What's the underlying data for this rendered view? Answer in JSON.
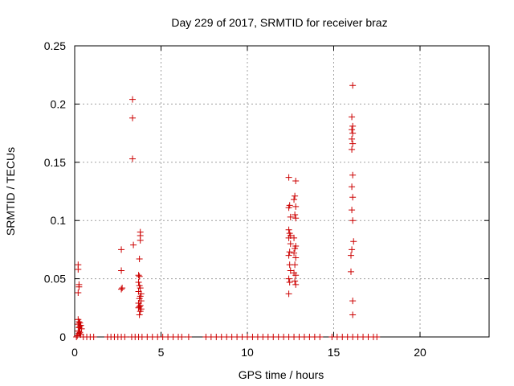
{
  "chart_data": {
    "type": "scatter",
    "title": "Day 229 of 2017, SRMTID for receiver braz",
    "xlabel": "GPS time / hours",
    "ylabel": "SRMTID / TECUs",
    "xlim": [
      0,
      24
    ],
    "ylim": [
      0,
      0.25
    ],
    "xticks": [
      0,
      5,
      10,
      15,
      20
    ],
    "xtick_labels": [
      "0",
      "5",
      "10",
      "15",
      "20"
    ],
    "yticks": [
      0,
      0.05,
      0.1,
      0.15,
      0.2,
      0.25
    ],
    "ytick_labels": [
      "0",
      "0.05",
      "0.1",
      "0.15",
      "0.2",
      "0.25"
    ],
    "grid": true,
    "marker": "+",
    "color": "#cc0000",
    "series": [
      {
        "name": "SRMTID",
        "points": [
          [
            0.2,
            0.062
          ],
          [
            0.2,
            0.058
          ],
          [
            0.25,
            0.045
          ],
          [
            0.25,
            0.043
          ],
          [
            0.2,
            0.038
          ],
          [
            0.2,
            0.015
          ],
          [
            0.25,
            0.013
          ],
          [
            0.3,
            0.012
          ],
          [
            0.2,
            0.011
          ],
          [
            0.35,
            0.01
          ],
          [
            0.3,
            0.009
          ],
          [
            0.25,
            0.008
          ],
          [
            0.4,
            0.007
          ],
          [
            0.2,
            0.005
          ],
          [
            0.3,
            0.004
          ],
          [
            0.25,
            0.003
          ],
          [
            0.35,
            0.002
          ],
          [
            0.15,
            0.001
          ],
          [
            0.1,
            0.0
          ],
          [
            0.5,
            0.0
          ],
          [
            0.7,
            0.0
          ],
          [
            0.9,
            0.0
          ],
          [
            1.1,
            0.0
          ],
          [
            1.9,
            0.0
          ],
          [
            2.1,
            0.0
          ],
          [
            2.3,
            0.0
          ],
          [
            2.5,
            0.0
          ],
          [
            2.7,
            0.0
          ],
          [
            2.9,
            0.0
          ],
          [
            2.7,
            0.075
          ],
          [
            2.7,
            0.057
          ],
          [
            2.75,
            0.042
          ],
          [
            2.7,
            0.041
          ],
          [
            3.3,
            0.0
          ],
          [
            3.5,
            0.0
          ],
          [
            3.7,
            0.0
          ],
          [
            3.9,
            0.0
          ],
          [
            3.35,
            0.204
          ],
          [
            3.35,
            0.188
          ],
          [
            3.35,
            0.153
          ],
          [
            3.4,
            0.079
          ],
          [
            3.8,
            0.09
          ],
          [
            3.8,
            0.087
          ],
          [
            3.8,
            0.083
          ],
          [
            3.75,
            0.067
          ],
          [
            3.7,
            0.053
          ],
          [
            3.75,
            0.052
          ],
          [
            3.7,
            0.047
          ],
          [
            3.75,
            0.044
          ],
          [
            3.8,
            0.042
          ],
          [
            3.7,
            0.039
          ],
          [
            3.85,
            0.037
          ],
          [
            3.8,
            0.035
          ],
          [
            3.75,
            0.033
          ],
          [
            3.85,
            0.031
          ],
          [
            3.7,
            0.029
          ],
          [
            3.8,
            0.027
          ],
          [
            3.75,
            0.026
          ],
          [
            3.7,
            0.025
          ],
          [
            3.85,
            0.024
          ],
          [
            3.8,
            0.022
          ],
          [
            3.75,
            0.019
          ],
          [
            4.2,
            0.0
          ],
          [
            4.5,
            0.0
          ],
          [
            4.8,
            0.0
          ],
          [
            5.1,
            0.0
          ],
          [
            5.4,
            0.0
          ],
          [
            5.7,
            0.0
          ],
          [
            6.0,
            0.0
          ],
          [
            6.2,
            0.0
          ],
          [
            6.6,
            0.0
          ],
          [
            7.6,
            0.0
          ],
          [
            7.9,
            0.0
          ],
          [
            8.2,
            0.0
          ],
          [
            8.5,
            0.0
          ],
          [
            8.8,
            0.0
          ],
          [
            9.1,
            0.0
          ],
          [
            9.4,
            0.0
          ],
          [
            9.7,
            0.0
          ],
          [
            10.0,
            0.0
          ],
          [
            10.3,
            0.0
          ],
          [
            10.6,
            0.0
          ],
          [
            10.9,
            0.0
          ],
          [
            11.2,
            0.0
          ],
          [
            11.5,
            0.0
          ],
          [
            11.8,
            0.0
          ],
          [
            12.1,
            0.0
          ],
          [
            12.4,
            0.0
          ],
          [
            12.7,
            0.0
          ],
          [
            13.0,
            0.0
          ],
          [
            13.3,
            0.0
          ],
          [
            13.6,
            0.0
          ],
          [
            13.9,
            0.0
          ],
          [
            14.2,
            0.0
          ],
          [
            12.4,
            0.137
          ],
          [
            12.45,
            0.113
          ],
          [
            12.4,
            0.111
          ],
          [
            12.5,
            0.103
          ],
          [
            12.4,
            0.092
          ],
          [
            12.45,
            0.089
          ],
          [
            12.5,
            0.087
          ],
          [
            12.4,
            0.085
          ],
          [
            12.5,
            0.08
          ],
          [
            12.45,
            0.073
          ],
          [
            12.4,
            0.07
          ],
          [
            12.45,
            0.062
          ],
          [
            12.5,
            0.057
          ],
          [
            12.4,
            0.05
          ],
          [
            12.45,
            0.047
          ],
          [
            12.4,
            0.037
          ],
          [
            12.8,
            0.134
          ],
          [
            12.75,
            0.121
          ],
          [
            12.7,
            0.118
          ],
          [
            12.8,
            0.112
          ],
          [
            12.75,
            0.105
          ],
          [
            12.8,
            0.102
          ],
          [
            12.7,
            0.085
          ],
          [
            12.8,
            0.078
          ],
          [
            12.75,
            0.076
          ],
          [
            12.7,
            0.072
          ],
          [
            12.8,
            0.068
          ],
          [
            12.75,
            0.062
          ],
          [
            12.7,
            0.055
          ],
          [
            12.8,
            0.053
          ],
          [
            12.75,
            0.048
          ],
          [
            12.8,
            0.045
          ],
          [
            14.9,
            0.0
          ],
          [
            15.2,
            0.0
          ],
          [
            15.5,
            0.0
          ],
          [
            15.8,
            0.0
          ],
          [
            16.1,
            0.0
          ],
          [
            16.4,
            0.0
          ],
          [
            16.7,
            0.0
          ],
          [
            17.0,
            0.0
          ],
          [
            17.3,
            0.0
          ],
          [
            17.5,
            0.0
          ],
          [
            16.1,
            0.216
          ],
          [
            16.05,
            0.189
          ],
          [
            16.1,
            0.181
          ],
          [
            16.05,
            0.178
          ],
          [
            16.1,
            0.175
          ],
          [
            16.05,
            0.17
          ],
          [
            16.1,
            0.166
          ],
          [
            16.05,
            0.161
          ],
          [
            16.1,
            0.139
          ],
          [
            16.05,
            0.129
          ],
          [
            16.1,
            0.12
          ],
          [
            16.05,
            0.109
          ],
          [
            16.1,
            0.1
          ],
          [
            16.15,
            0.082
          ],
          [
            16.05,
            0.075
          ],
          [
            16.0,
            0.07
          ],
          [
            16.0,
            0.056
          ],
          [
            16.1,
            0.031
          ],
          [
            16.1,
            0.019
          ]
        ]
      }
    ]
  }
}
